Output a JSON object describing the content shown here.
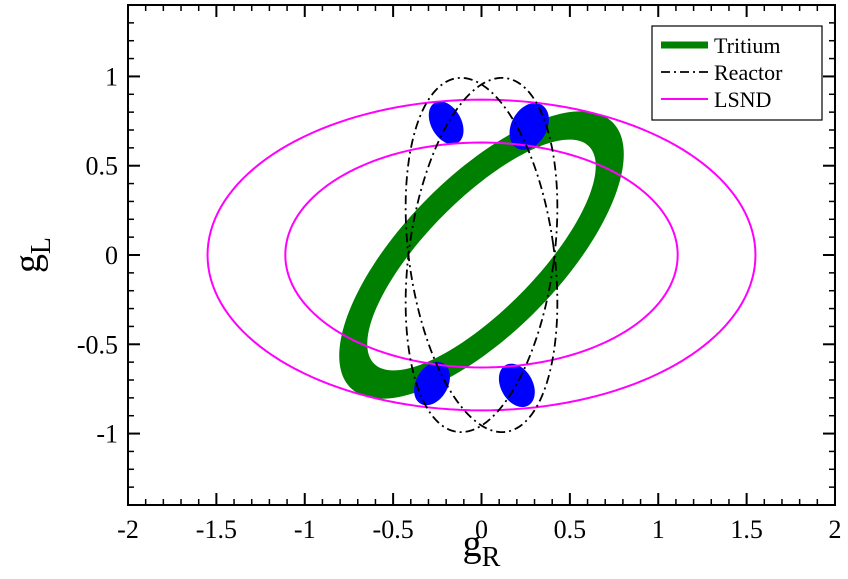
{
  "chart_data": {
    "type": "contour",
    "xlabel": "g",
    "xlabel_sub": "R",
    "ylabel": "g",
    "ylabel_sub": "L",
    "xlim": [
      -2,
      2
    ],
    "ylim": [
      -1.4,
      1.4
    ],
    "x_ticks": [
      -2,
      -1.5,
      -1,
      -0.5,
      0,
      0.5,
      1,
      1.5,
      2
    ],
    "x_tick_labels": [
      "-2",
      "-1.5",
      "-1",
      "-0.5",
      "0",
      "0.5",
      "1",
      "1.5",
      "2"
    ],
    "y_ticks": [
      -1,
      -0.5,
      0,
      0.5,
      1
    ],
    "y_tick_labels": [
      "-1",
      "-0.5",
      "0",
      "0.5",
      "1"
    ],
    "legend_position": "top-right",
    "series": [
      {
        "name": "Tritium",
        "style": "filled-band",
        "color": "#008000",
        "outer_ellipse": {
          "center": [
            0,
            0
          ],
          "a": 1.05,
          "b": 0.44,
          "angle_deg": 45
        },
        "inner_ellipse": {
          "center": [
            0,
            0
          ],
          "a": 0.86,
          "b": 0.31,
          "angle_deg": 45
        }
      },
      {
        "name": "Reactor",
        "style": "dash-dot",
        "color": "#000000",
        "ellipses": [
          {
            "center": [
              0,
              0
            ],
            "a": 0.41,
            "b": 1.0,
            "angle_deg": -8
          },
          {
            "center": [
              0,
              0
            ],
            "a": 0.41,
            "b": 1.0,
            "angle_deg": 8
          }
        ]
      },
      {
        "name": "LSND",
        "style": "solid",
        "color": "#ff00ff",
        "ellipses": [
          {
            "center": [
              0,
              0
            ],
            "a": 1.55,
            "b": 0.87,
            "angle_deg": 0
          },
          {
            "center": [
              0,
              0
            ],
            "a": 1.11,
            "b": 0.63,
            "angle_deg": 0
          }
        ]
      },
      {
        "name": "",
        "style": "filled-blobs",
        "color": "#0000ff",
        "blobs": [
          {
            "center": [
              -0.2,
              0.74
            ],
            "rx": 0.085,
            "ry": 0.13,
            "angle_deg": 30
          },
          {
            "center": [
              0.27,
              0.72
            ],
            "rx": 0.1,
            "ry": 0.14,
            "angle_deg": -30
          },
          {
            "center": [
              -0.28,
              -0.72
            ],
            "rx": 0.09,
            "ry": 0.13,
            "angle_deg": -30
          },
          {
            "center": [
              0.2,
              -0.73
            ],
            "rx": 0.09,
            "ry": 0.13,
            "angle_deg": 30
          }
        ]
      }
    ]
  }
}
